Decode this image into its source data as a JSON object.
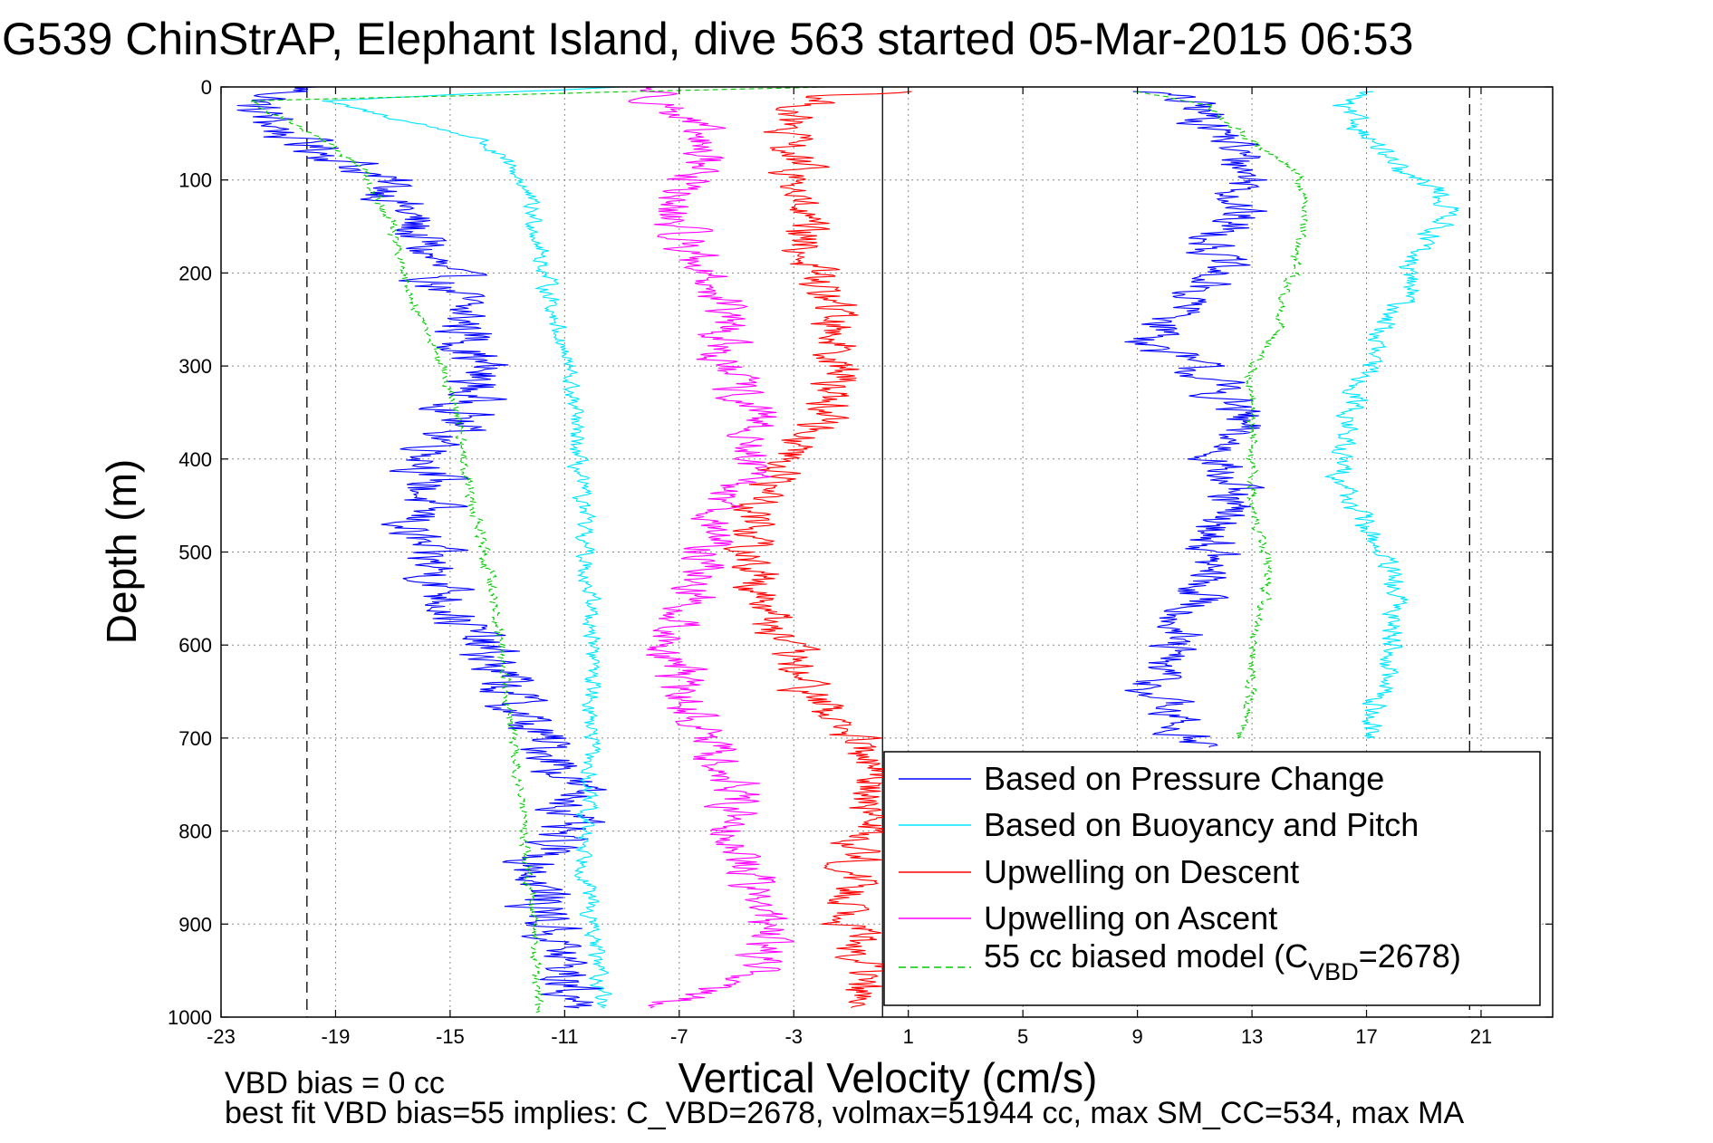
{
  "chart_data": {
    "type": "line",
    "title": "G539 ChinStrAP, Elephant Island, dive 563 started 05-Mar-2015 06:53",
    "xlabel": "Vertical Velocity (cm/s)",
    "ylabel": "Depth (m)",
    "xlim": [
      -23,
      23.5
    ],
    "ylim": [
      0,
      1000
    ],
    "y_reversed": true,
    "grid": true,
    "legend_position": "bottom-right",
    "x_ticks": [
      -23,
      -19,
      -15,
      -11,
      -7,
      -3,
      1,
      5,
      9,
      13,
      17,
      21
    ],
    "x_tick_labels": [
      "-23",
      "-19",
      "-15",
      "-11",
      "-7",
      "-3",
      "1",
      "5",
      "9",
      "13",
      "17",
      "21"
    ],
    "y_ticks": [
      0,
      100,
      200,
      300,
      400,
      500,
      600,
      700,
      800,
      900,
      1000
    ],
    "y_tick_labels": [
      "0",
      "100",
      "200",
      "300",
      "400",
      "500",
      "600",
      "700",
      "800",
      "900",
      "1000"
    ],
    "reference_lines": [
      {
        "x": -20,
        "style": "dashed",
        "color": "#000000"
      },
      {
        "x": 0.1,
        "style": "solid",
        "color": "#000000"
      },
      {
        "x": 20.6,
        "style": "dashed",
        "color": "#000000"
      }
    ],
    "series": [
      {
        "name": "Based on Pressure Change",
        "color": "#0000ff",
        "style": "solid",
        "noise": 0.9,
        "points": [
          [
            -20,
            0
          ],
          [
            -22,
            20
          ],
          [
            -20.5,
            55
          ],
          [
            -18.5,
            80
          ],
          [
            -17,
            110
          ],
          [
            -16.5,
            140
          ],
          [
            -15.5,
            200
          ],
          [
            -14.5,
            250
          ],
          [
            -14,
            300
          ],
          [
            -14.5,
            350
          ],
          [
            -15.5,
            400
          ],
          [
            -16,
            450
          ],
          [
            -16.5,
            480
          ],
          [
            -15.5,
            520
          ],
          [
            -14.5,
            580
          ],
          [
            -13.5,
            620
          ],
          [
            -12.5,
            680
          ],
          [
            -11,
            730
          ],
          [
            -10.5,
            770
          ],
          [
            -11.5,
            800
          ],
          [
            -12,
            850
          ],
          [
            -11.5,
            900
          ],
          [
            -11,
            950
          ],
          [
            -10.5,
            990
          ]
        ]
      },
      {
        "name": "",
        "color": "#0000ff",
        "style": "solid",
        "noise": 0.8,
        "points": [
          [
            9.5,
            5
          ],
          [
            11,
            20
          ],
          [
            12,
            50
          ],
          [
            13,
            100
          ],
          [
            12,
            160
          ],
          [
            11.5,
            200
          ],
          [
            10,
            260
          ],
          [
            9.5,
            280
          ],
          [
            11,
            300
          ],
          [
            12.5,
            350
          ],
          [
            12,
            400
          ],
          [
            12,
            450
          ],
          [
            11.5,
            500
          ],
          [
            11,
            560
          ],
          [
            10,
            600
          ],
          [
            9.5,
            650
          ],
          [
            10.5,
            690
          ],
          [
            11.5,
            710
          ]
        ]
      },
      {
        "name": "Based on Buoyancy and Pitch",
        "color": "#00e5ff",
        "style": "solid",
        "noise": 0.25,
        "points": [
          [
            -9,
            0
          ],
          [
            -19.5,
            15
          ],
          [
            -14,
            55
          ],
          [
            -12.5,
            100
          ],
          [
            -12,
            150
          ],
          [
            -11.7,
            200
          ],
          [
            -11.3,
            250
          ],
          [
            -10.9,
            300
          ],
          [
            -10.7,
            350
          ],
          [
            -10.6,
            400
          ],
          [
            -10.4,
            450
          ],
          [
            -10.3,
            500
          ],
          [
            -10.1,
            550
          ],
          [
            -10,
            600
          ],
          [
            -10,
            650
          ],
          [
            -10.1,
            700
          ],
          [
            -10.2,
            750
          ],
          [
            -10.3,
            800
          ],
          [
            -10.2,
            850
          ],
          [
            -10.1,
            900
          ],
          [
            -9.8,
            950
          ],
          [
            -9.6,
            990
          ]
        ]
      },
      {
        "name": "",
        "color": "#00e5ff",
        "style": "solid",
        "noise": 0.35,
        "points": [
          [
            17,
            5
          ],
          [
            16,
            20
          ],
          [
            17,
            50
          ],
          [
            18,
            90
          ],
          [
            19.5,
            110
          ],
          [
            20,
            140
          ],
          [
            18.5,
            180
          ],
          [
            18.5,
            220
          ],
          [
            17.5,
            260
          ],
          [
            17,
            300
          ],
          [
            16.5,
            350
          ],
          [
            16,
            400
          ],
          [
            16.5,
            450
          ],
          [
            17.5,
            500
          ],
          [
            18,
            550
          ],
          [
            18,
            600
          ],
          [
            17.5,
            650
          ],
          [
            17,
            700
          ]
        ]
      },
      {
        "name": "Upwelling on Descent",
        "color": "#ff0000",
        "style": "solid",
        "noise": 0.7,
        "points": [
          [
            1.5,
            5
          ],
          [
            -2,
            10
          ],
          [
            -3.5,
            40
          ],
          [
            -3,
            80
          ],
          [
            -3,
            120
          ],
          [
            -2.8,
            160
          ],
          [
            -2.3,
            200
          ],
          [
            -1.5,
            250
          ],
          [
            -1.3,
            300
          ],
          [
            -1.8,
            350
          ],
          [
            -3.2,
            400
          ],
          [
            -4.2,
            450
          ],
          [
            -4.5,
            500
          ],
          [
            -4,
            550
          ],
          [
            -3.5,
            600
          ],
          [
            -2.5,
            650
          ],
          [
            -1,
            700
          ],
          [
            0,
            750
          ],
          [
            -0.5,
            800
          ],
          [
            -1,
            850
          ],
          [
            -0.8,
            900
          ],
          [
            -0.5,
            950
          ],
          [
            -1,
            990
          ]
        ]
      },
      {
        "name": "Upwelling on Ascent",
        "color": "#ff00ff",
        "style": "solid",
        "noise": 0.7,
        "points": [
          [
            -8,
            0
          ],
          [
            -7,
            30
          ],
          [
            -6,
            80
          ],
          [
            -7.5,
            130
          ],
          [
            -6.5,
            180
          ],
          [
            -5.5,
            230
          ],
          [
            -5.5,
            300
          ],
          [
            -4.5,
            350
          ],
          [
            -4.5,
            400
          ],
          [
            -5.5,
            450
          ],
          [
            -6,
            500
          ],
          [
            -6.5,
            550
          ],
          [
            -7.5,
            600
          ],
          [
            -7,
            650
          ],
          [
            -6,
            700
          ],
          [
            -5,
            750
          ],
          [
            -5,
            800
          ],
          [
            -4.5,
            850
          ],
          [
            -4,
            900
          ],
          [
            -4,
            950
          ],
          [
            -8,
            990
          ]
        ]
      },
      {
        "name": "55 cc biased model (C",
        "name_sub": "VBD",
        "name_suffix": "=2678)",
        "color": "#00cc00",
        "style": "dashed",
        "noise": 0.15,
        "points": [
          [
            -2,
            0
          ],
          [
            -22,
            15
          ],
          [
            -19.5,
            55
          ],
          [
            -18,
            90
          ],
          [
            -17,
            150
          ],
          [
            -16.7,
            200
          ],
          [
            -16,
            250
          ],
          [
            -15.3,
            300
          ],
          [
            -14.8,
            350
          ],
          [
            -14.5,
            400
          ],
          [
            -14.2,
            450
          ],
          [
            -13.8,
            500
          ],
          [
            -13.5,
            550
          ],
          [
            -13.2,
            600
          ],
          [
            -13,
            650
          ],
          [
            -12.8,
            700
          ],
          [
            -12.6,
            750
          ],
          [
            -12.4,
            800
          ],
          [
            -12.3,
            850
          ],
          [
            -12.1,
            900
          ],
          [
            -12,
            950
          ],
          [
            -12,
            995
          ]
        ]
      },
      {
        "name": "",
        "color": "#00cc00",
        "style": "dashed",
        "noise": 0.15,
        "points": [
          [
            9,
            5
          ],
          [
            11.5,
            20
          ],
          [
            13,
            60
          ],
          [
            14.5,
            90
          ],
          [
            15,
            130
          ],
          [
            14.5,
            170
          ],
          [
            14.5,
            200
          ],
          [
            14,
            230
          ],
          [
            14,
            260
          ],
          [
            13,
            300
          ],
          [
            13,
            350
          ],
          [
            13,
            400
          ],
          [
            13,
            450
          ],
          [
            13.5,
            500
          ],
          [
            13.5,
            550
          ],
          [
            13,
            600
          ],
          [
            13,
            650
          ],
          [
            12.5,
            700
          ]
        ]
      }
    ],
    "footer_lines": [
      "VBD bias = 0 cc",
      "best fit VBD bias=55 implies: C_VBD=2678, volmax=51944 cc, max SM_CC=534, max MA"
    ]
  }
}
